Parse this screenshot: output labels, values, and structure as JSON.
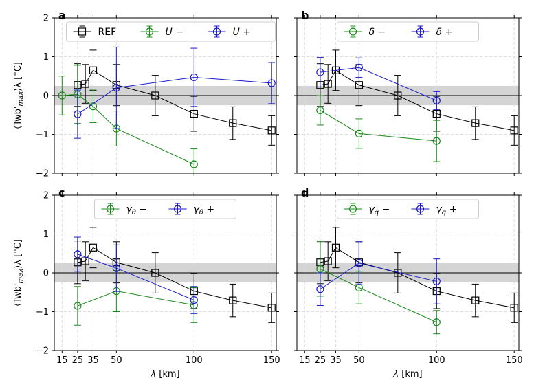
{
  "figure": {
    "xlabel": "λ [km]",
    "ylabel_main": "⟨Twb'",
    "ylabel_sub": "max",
    "ylabel_post": "⟩λ [°C]"
  },
  "colors": {
    "REF": "#000000",
    "minus": "#1a8a1a",
    "plus": "#1a1acc",
    "band": "#d4d4d4",
    "grid": "#dddddd"
  },
  "chart_data": [
    {
      "type": "line",
      "panel": "a",
      "xlim": [
        10,
        153
      ],
      "ylim": [
        -2,
        2
      ],
      "xticks": [
        15,
        25,
        35,
        50,
        100,
        150
      ],
      "yticks": [
        -2,
        -1,
        0,
        1,
        2
      ],
      "grid": true,
      "band": [
        -0.25,
        0.25
      ],
      "legend": {
        "placement": "top",
        "ncol": 3
      },
      "series": [
        {
          "name": "REF",
          "key": "REF",
          "marker": "square",
          "x": [
            25,
            30,
            35,
            50,
            75,
            100,
            125,
            150
          ],
          "y": [
            0.27,
            0.3,
            0.65,
            0.27,
            0.0,
            -0.47,
            -0.71,
            -0.9
          ],
          "err": [
            0.55,
            0.5,
            0.52,
            0.53,
            0.52,
            0.45,
            0.42,
            0.38
          ]
        },
        {
          "name": "U −",
          "key": "minus",
          "marker": "circle",
          "italic_sym": "U",
          "suffix": " −",
          "x": [
            15,
            25,
            35,
            50,
            100
          ],
          "y": [
            0.0,
            0.03,
            -0.28,
            -0.85,
            -1.77
          ],
          "err": [
            0.5,
            0.75,
            0.42,
            0.45,
            0.4
          ]
        },
        {
          "name": "U +",
          "key": "plus",
          "marker": "circle",
          "italic_sym": "U",
          "suffix": " +",
          "x": [
            25,
            50,
            100,
            150
          ],
          "y": [
            -0.48,
            0.2,
            0.47,
            0.32
          ],
          "err": [
            0.62,
            1.05,
            0.75,
            0.53
          ]
        }
      ]
    },
    {
      "type": "line",
      "panel": "b",
      "xlim": [
        10,
        153
      ],
      "ylim": [
        -2,
        2
      ],
      "xticks": [
        15,
        25,
        35,
        50,
        100,
        150
      ],
      "yticks": [
        -2,
        -1,
        0,
        1,
        2
      ],
      "grid": true,
      "band": [
        -0.25,
        0.25
      ],
      "legend": {
        "placement": "top",
        "ncol": 2
      },
      "series": [
        {
          "name": "REF",
          "key": "REF",
          "marker": "square",
          "in_legend": false,
          "x": [
            25,
            30,
            35,
            50,
            75,
            100,
            125,
            150
          ],
          "y": [
            0.27,
            0.3,
            0.65,
            0.27,
            0.0,
            -0.47,
            -0.71,
            -0.9
          ],
          "err": [
            0.55,
            0.5,
            0.52,
            0.53,
            0.52,
            0.45,
            0.42,
            0.38
          ]
        },
        {
          "name": "δ −",
          "key": "minus",
          "marker": "circle",
          "italic_sym": "δ",
          "suffix": " −",
          "x": [
            25,
            50,
            100
          ],
          "y": [
            -0.38,
            -0.98,
            -1.17
          ],
          "err": [
            0.38,
            0.38,
            0.53
          ]
        },
        {
          "name": "δ +",
          "key": "plus",
          "marker": "circle",
          "italic_sym": "δ",
          "suffix": " +",
          "x": [
            25,
            50,
            100
          ],
          "y": [
            0.6,
            0.72,
            -0.13
          ],
          "err": [
            0.38,
            0.25,
            0.23
          ]
        }
      ]
    },
    {
      "type": "line",
      "panel": "c",
      "xlim": [
        10,
        153
      ],
      "ylim": [
        -2,
        2
      ],
      "xticks": [
        15,
        25,
        35,
        50,
        100,
        150
      ],
      "yticks": [
        -2,
        -1,
        0,
        1,
        2
      ],
      "grid": true,
      "band": [
        -0.25,
        0.25
      ],
      "legend": {
        "placement": "top",
        "ncol": 2
      },
      "series": [
        {
          "name": "REF",
          "key": "REF",
          "marker": "square",
          "in_legend": false,
          "x": [
            25,
            30,
            35,
            50,
            75,
            100,
            125,
            150
          ],
          "y": [
            0.27,
            0.3,
            0.65,
            0.27,
            0.0,
            -0.47,
            -0.71,
            -0.9
          ],
          "err": [
            0.55,
            0.5,
            0.52,
            0.53,
            0.52,
            0.45,
            0.42,
            0.38
          ]
        },
        {
          "name": "γθ −",
          "key": "minus",
          "marker": "circle",
          "italic_sym": "γ",
          "sub": "θ",
          "suffix": " −",
          "x": [
            25,
            50,
            100
          ],
          "y": [
            -0.85,
            -0.47,
            -0.83
          ],
          "err": [
            0.5,
            0.53,
            0.45
          ]
        },
        {
          "name": "γθ +",
          "key": "plus",
          "marker": "circle",
          "italic_sym": "γ",
          "sub": "θ",
          "suffix": " +",
          "x": [
            25,
            50,
            100
          ],
          "y": [
            0.48,
            0.12,
            -0.7
          ],
          "err": [
            0.44,
            0.6,
            0.35
          ]
        }
      ]
    },
    {
      "type": "line",
      "panel": "d",
      "xlim": [
        10,
        153
      ],
      "ylim": [
        -2,
        2
      ],
      "xticks": [
        15,
        25,
        35,
        50,
        100,
        150
      ],
      "yticks": [
        -2,
        -1,
        0,
        1,
        2
      ],
      "grid": true,
      "band": [
        -0.25,
        0.25
      ],
      "legend": {
        "placement": "top",
        "ncol": 2
      },
      "series": [
        {
          "name": "REF",
          "key": "REF",
          "marker": "square",
          "in_legend": false,
          "x": [
            25,
            30,
            35,
            50,
            75,
            100,
            125,
            150
          ],
          "y": [
            0.27,
            0.3,
            0.65,
            0.27,
            0.0,
            -0.47,
            -0.71,
            -0.9
          ],
          "err": [
            0.55,
            0.5,
            0.52,
            0.53,
            0.52,
            0.45,
            0.42,
            0.38
          ]
        },
        {
          "name": "γq −",
          "key": "minus",
          "marker": "circle",
          "italic_sym": "γ",
          "sub": "q",
          "suffix": " −",
          "x": [
            25,
            50,
            100
          ],
          "y": [
            0.1,
            -0.38,
            -1.27
          ],
          "err": [
            0.7,
            0.42,
            0.3
          ]
        },
        {
          "name": "γq +",
          "key": "plus",
          "marker": "circle",
          "italic_sym": "γ",
          "sub": "q",
          "suffix": " +",
          "x": [
            25,
            50,
            100
          ],
          "y": [
            -0.42,
            0.25,
            -0.22
          ],
          "err": [
            0.42,
            0.55,
            0.58
          ]
        }
      ]
    }
  ]
}
